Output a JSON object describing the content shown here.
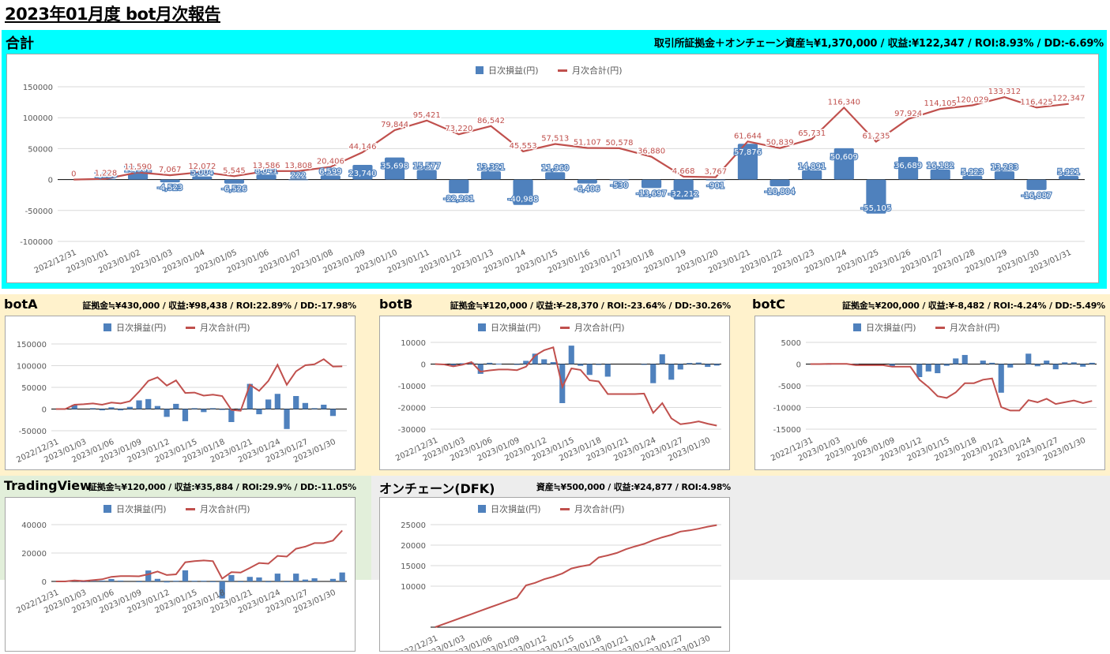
{
  "page": {
    "title": "2023年01月度 bot月次報告"
  },
  "colors": {
    "bar": "#4f81bd",
    "line": "#c0504d",
    "total_bg": "#00ffff",
    "cream_bg": "#fff2cc",
    "green_bg": "#e2efda",
    "gray_bg": "#ededed",
    "grid": "#d9d9d9"
  },
  "legend": {
    "bar_label": "日次損益(円)",
    "line_label": "月次合計(円)"
  },
  "dates_full": [
    "2022/12/31",
    "2023/01/01",
    "2023/01/02",
    "2023/01/03",
    "2023/01/04",
    "2023/01/05",
    "2023/01/06",
    "2023/01/07",
    "2023/01/08",
    "2023/01/09",
    "2023/01/10",
    "2023/01/11",
    "2023/01/12",
    "2023/01/13",
    "2023/01/14",
    "2023/01/15",
    "2023/01/16",
    "2023/01/17",
    "2023/01/18",
    "2023/01/19",
    "2023/01/20",
    "2023/01/21",
    "2023/01/22",
    "2023/01/23",
    "2023/01/24",
    "2023/01/25",
    "2023/01/26",
    "2023/01/27",
    "2023/01/28",
    "2023/01/29",
    "2023/01/30",
    "2023/01/31"
  ],
  "dates_sparse": [
    "2022/12/31",
    "2023/01/03",
    "2023/01/06",
    "2023/01/09",
    "2023/01/12",
    "2023/01/15",
    "2023/01/18",
    "2023/01/21",
    "2023/01/24",
    "2023/01/27",
    "2023/01/30"
  ],
  "total": {
    "title": "合計",
    "summary": "取引所証拠金＋オンチェーン資産≒¥1,370,000 / 収益:¥122,347 / ROI:8.93% / DD:-6.69%"
  },
  "botA": {
    "title": "botA",
    "summary": "証拠金≒¥430,000 / 収益:¥98,438 / ROI:22.89% / DD:-17.98%"
  },
  "botB": {
    "title": "botB",
    "summary": "証拠金≒¥120,000 / 収益:¥-28,370 / ROI:-23.64% / DD:-30.26%"
  },
  "botC": {
    "title": "botC",
    "summary": "証拠金≒¥200,000 / 収益:¥-8,482 / ROI:-4.24% / DD:-5.49%"
  },
  "tradingview": {
    "title": "TradingView",
    "summary": "証拠金≒¥120,000 / 収益:¥35,884 / ROI:29.9% / DD:-11.05%"
  },
  "dfk": {
    "title": "オンチェーン(DFK)",
    "summary": "資産≒¥500,000 / 収益:¥24,877 / ROI:4.98%"
  },
  "chart_data": [
    {
      "id": "total",
      "type": "bar+line",
      "title": "合計",
      "legend": [
        "日次損益(円)",
        "月次合計(円)"
      ],
      "legend_position": "top",
      "ylim": [
        -100000,
        150000
      ],
      "yticks": [
        150000,
        100000,
        50000,
        0,
        -50000,
        -100000
      ],
      "data_labels": true,
      "categories": [
        "2022/12/31",
        "2023/01/01",
        "2023/01/02",
        "2023/01/03",
        "2023/01/04",
        "2023/01/05",
        "2023/01/06",
        "2023/01/07",
        "2023/01/08",
        "2023/01/09",
        "2023/01/10",
        "2023/01/11",
        "2023/01/12",
        "2023/01/13",
        "2023/01/14",
        "2023/01/15",
        "2023/01/16",
        "2023/01/17",
        "2023/01/18",
        "2023/01/19",
        "2023/01/20",
        "2023/01/21",
        "2023/01/22",
        "2023/01/23",
        "2023/01/24",
        "2023/01/25",
        "2023/01/26",
        "2023/01/27",
        "2023/01/28",
        "2023/01/29",
        "2023/01/30",
        "2023/01/31"
      ],
      "series": [
        {
          "name": "日次損益(円)",
          "kind": "bar",
          "values": [
            0,
            1228,
            10362,
            -4523,
            5004,
            -6526,
            8041,
            222,
            6599,
            23740,
            35698,
            15577,
            -22201,
            13321,
            -40988,
            11960,
            -6406,
            -530,
            -13697,
            -32212,
            -901,
            57876,
            -10804,
            14891,
            50609,
            -55105,
            36689,
            16182,
            5923,
            13283,
            -16887,
            5921
          ]
        },
        {
          "name": "月次合計(円)",
          "kind": "line",
          "values": [
            0,
            1228,
            11590,
            7067,
            12072,
            5545,
            13586,
            13808,
            20406,
            44146,
            79844,
            95421,
            73220,
            86542,
            45553,
            57513,
            51107,
            50578,
            36880,
            4668,
            3767,
            61644,
            50839,
            65731,
            116340,
            61235,
            97924,
            114105,
            120029,
            133312,
            116425,
            122347
          ]
        }
      ]
    },
    {
      "id": "botA",
      "type": "bar+line",
      "title": "botA",
      "legend": [
        "日次損益(円)",
        "月次合計(円)"
      ],
      "ylim": [
        -50000,
        150000
      ],
      "yticks": [
        150000,
        100000,
        50000,
        0,
        -50000
      ],
      "series": [
        {
          "name": "日次損益(円)",
          "kind": "bar",
          "values": [
            0,
            0,
            10000,
            0,
            2000,
            -3000,
            4000,
            -3000,
            5000,
            20000,
            23000,
            7000,
            -18000,
            12000,
            -28000,
            2000,
            -7000,
            2000,
            -2000,
            -30000,
            -2000,
            58000,
            -12000,
            22000,
            35000,
            -46000,
            30000,
            14000,
            2000,
            10000,
            -16000,
            0
          ]
        },
        {
          "name": "月次合計(円)",
          "kind": "line",
          "values": [
            0,
            0,
            10000,
            11000,
            13000,
            10000,
            15000,
            13000,
            18000,
            40000,
            65000,
            73000,
            54000,
            66000,
            37000,
            38000,
            31000,
            33000,
            30000,
            -2000,
            -4000,
            56000,
            42000,
            65000,
            102000,
            56000,
            87000,
            101000,
            103000,
            115000,
            98000,
            98438
          ]
        }
      ]
    },
    {
      "id": "botB",
      "type": "bar+line",
      "title": "botB",
      "legend": [
        "日次損益(円)",
        "月次合計(円)"
      ],
      "ylim": [
        -30000,
        10000
      ],
      "yticks": [
        10000,
        0,
        -10000,
        -20000,
        -30000
      ],
      "series": [
        {
          "name": "日次損益(円)",
          "kind": "bar",
          "values": [
            0,
            -200,
            -800,
            400,
            700,
            -4500,
            600,
            200,
            0,
            -300,
            1500,
            4800,
            2200,
            900,
            -18000,
            8500,
            -800,
            -5000,
            -400,
            -5800,
            0,
            0,
            0,
            -200,
            -8800,
            4500,
            -7200,
            -2500,
            500,
            700,
            -1300,
            -700
          ]
        },
        {
          "name": "月次合計(円)",
          "kind": "line",
          "values": [
            0,
            -200,
            -1000,
            -300,
            900,
            -3500,
            -2900,
            -2500,
            -2500,
            -2800,
            -1200,
            3900,
            6400,
            7700,
            -10500,
            -2000,
            -2700,
            -7500,
            -8000,
            -13800,
            -13800,
            -13800,
            -13800,
            -13600,
            -22500,
            -18000,
            -25000,
            -27700,
            -27200,
            -26400,
            -27500,
            -28370
          ]
        }
      ]
    },
    {
      "id": "botC",
      "type": "bar+line",
      "title": "botC",
      "legend": [
        "日次損益(円)",
        "月次合計(円)"
      ],
      "ylim": [
        -15000,
        5000
      ],
      "yticks": [
        5000,
        0,
        -5000,
        -10000,
        -15000
      ],
      "series": [
        {
          "name": "日次損益(円)",
          "kind": "bar",
          "values": [
            0,
            0,
            50,
            0,
            0,
            -300,
            0,
            0,
            0,
            -500,
            0,
            0,
            -3000,
            -1700,
            -2100,
            -400,
            1300,
            2100,
            0,
            800,
            300,
            -6600,
            -800,
            0,
            2400,
            -500,
            800,
            -1200,
            400,
            400,
            -600,
            300
          ]
        },
        {
          "name": "月次合計(円)",
          "kind": "line",
          "values": [
            0,
            0,
            50,
            50,
            50,
            -250,
            -250,
            -250,
            -250,
            -600,
            -600,
            -600,
            -3600,
            -5300,
            -7400,
            -7800,
            -6500,
            -4400,
            -4400,
            -3600,
            -3300,
            -9900,
            -10700,
            -10700,
            -8300,
            -8800,
            -8000,
            -9200,
            -8800,
            -8400,
            -9000,
            -8482
          ]
        }
      ]
    },
    {
      "id": "tradingview",
      "type": "bar+line",
      "title": "TradingView",
      "legend": [
        "日次損益(円)",
        "月次合計(円)"
      ],
      "ylim": [
        0,
        40000
      ],
      "yticks": [
        40000,
        20000,
        0
      ],
      "series": [
        {
          "name": "日次損益(円)",
          "kind": "bar",
          "values": [
            0,
            0,
            700,
            -400,
            600,
            600,
            1700,
            600,
            0,
            -200,
            7700,
            1800,
            -700,
            500,
            7800,
            500,
            500,
            -500,
            -12000,
            4500,
            -300,
            3200,
            2800,
            -600,
            5500,
            -500,
            5500,
            1300,
            2200,
            0,
            1800,
            6300
          ]
        },
        {
          "name": "月次合計(円)",
          "kind": "line",
          "values": [
            0,
            0,
            700,
            300,
            900,
            1500,
            3200,
            3800,
            3800,
            3600,
            5000,
            7000,
            4500,
            5000,
            13500,
            14300,
            14800,
            14300,
            2000,
            6500,
            6200,
            9500,
            13000,
            12500,
            18000,
            17500,
            23000,
            24500,
            27000,
            27000,
            28800,
            35884
          ]
        }
      ]
    },
    {
      "id": "dfk",
      "type": "bar+line",
      "title": "オンチェーン(DFK)",
      "legend": [
        "日次損益(円)",
        "月次合計(円)"
      ],
      "ylim": [
        0,
        25000
      ],
      "yticks": [
        25000,
        20000,
        15000,
        10000
      ],
      "series": [
        {
          "name": "月次合計(円)",
          "kind": "line",
          "values": [
            0,
            800,
            1600,
            2400,
            3200,
            4000,
            4800,
            5600,
            6400,
            7200,
            10200,
            10800,
            11700,
            12300,
            13100,
            14300,
            14800,
            15200,
            17000,
            17500,
            18100,
            19000,
            19700,
            20300,
            21200,
            21900,
            22500,
            23300,
            23600,
            24000,
            24500,
            24877
          ]
        }
      ]
    }
  ]
}
